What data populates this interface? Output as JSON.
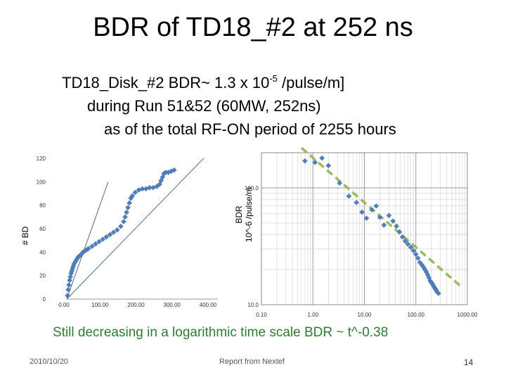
{
  "slide": {
    "title": "BDR of TD18_#2 at 252 ns",
    "subtitle": {
      "line1_pre": "TD18_Disk_#2  BDR~ 1.3 x 10",
      "line1_sup": "-5",
      "line1_post": " /pulse/m]",
      "line2": "during Run 51&52  (60MW, 252ns)",
      "line3": "as of the total RF-ON period of 2255 hours"
    },
    "caption": "Still decreasing in a logarithmic time scale BDR ~ t^-0.38",
    "footer": {
      "date": "2010/10/20",
      "source": "Report from Nextef",
      "page": "14"
    }
  },
  "chart_data": [
    {
      "type": "scatter",
      "ylabel": "# BD",
      "xlim": [
        0,
        400
      ],
      "ylim": [
        0,
        120
      ],
      "x_ticks": [
        "0.00",
        "100.00",
        "200.00",
        "300.00",
        "400.00"
      ],
      "y_ticks": [
        "0",
        "20",
        "40",
        "60",
        "80",
        "100",
        "120"
      ],
      "grid": false,
      "marker_color": "#4f81bd",
      "points": [
        [
          2,
          3
        ],
        [
          4,
          8
        ],
        [
          6,
          12
        ],
        [
          8,
          16
        ],
        [
          10,
          19
        ],
        [
          12,
          22
        ],
        [
          14,
          24
        ],
        [
          16,
          26
        ],
        [
          18,
          28
        ],
        [
          20,
          30
        ],
        [
          24,
          32
        ],
        [
          28,
          34
        ],
        [
          32,
          36
        ],
        [
          36,
          37
        ],
        [
          40,
          38
        ],
        [
          45,
          40
        ],
        [
          50,
          41
        ],
        [
          55,
          42
        ],
        [
          60,
          43
        ],
        [
          70,
          45
        ],
        [
          80,
          47
        ],
        [
          90,
          49
        ],
        [
          100,
          51
        ],
        [
          110,
          53
        ],
        [
          120,
          55
        ],
        [
          130,
          57
        ],
        [
          140,
          59
        ],
        [
          150,
          62
        ],
        [
          158,
          66
        ],
        [
          162,
          70
        ],
        [
          166,
          74
        ],
        [
          170,
          78
        ],
        [
          174,
          82
        ],
        [
          178,
          86
        ],
        [
          182,
          88
        ],
        [
          190,
          91
        ],
        [
          200,
          93
        ],
        [
          210,
          94
        ],
        [
          220,
          94
        ],
        [
          230,
          95
        ],
        [
          240,
          95
        ],
        [
          250,
          96
        ],
        [
          258,
          98
        ],
        [
          262,
          101
        ],
        [
          266,
          104
        ],
        [
          270,
          107
        ],
        [
          275,
          108
        ],
        [
          282,
          108
        ],
        [
          290,
          109
        ],
        [
          298,
          110
        ]
      ],
      "lines": [
        {
          "from": [
            0,
            0
          ],
          "to": [
            115,
            100
          ]
        },
        {
          "from": [
            0,
            0
          ],
          "to": [
            380,
            120
          ]
        }
      ]
    },
    {
      "type": "scatter",
      "ylabel": "BDR\n10^-6 /pulse/m",
      "x_scale": "log",
      "y_scale": "log",
      "xlim": [
        0.1,
        1000
      ],
      "ylim": [
        10,
        200
      ],
      "x_ticks": [
        "0.10",
        "1.00",
        "10.00",
        "100.00",
        "1000.00"
      ],
      "y_ticks": [
        "10.0",
        "100.0"
      ],
      "grid": true,
      "marker_color": "#4f81bd",
      "trend_color": "#9bbb59",
      "points": [
        [
          0.7,
          170
        ],
        [
          1.1,
          165
        ],
        [
          1.5,
          180
        ],
        [
          2.0,
          155
        ],
        [
          3.3,
          110
        ],
        [
          5,
          85
        ],
        [
          7,
          75
        ],
        [
          9,
          62
        ],
        [
          11,
          55
        ],
        [
          14,
          65
        ],
        [
          17,
          70
        ],
        [
          20,
          56
        ],
        [
          24,
          48
        ],
        [
          30,
          58
        ],
        [
          36,
          52
        ],
        [
          42,
          47
        ],
        [
          48,
          42
        ],
        [
          55,
          38
        ],
        [
          62,
          35
        ],
        [
          70,
          33
        ],
        [
          80,
          31
        ],
        [
          90,
          29
        ],
        [
          100,
          27
        ],
        [
          110,
          25
        ],
        [
          120,
          23
        ],
        [
          130,
          22
        ],
        [
          140,
          21
        ],
        [
          150,
          20
        ],
        [
          160,
          19
        ],
        [
          170,
          18
        ],
        [
          180,
          17
        ],
        [
          190,
          16
        ],
        [
          200,
          15.5
        ],
        [
          210,
          15
        ],
        [
          220,
          14.5
        ],
        [
          230,
          14
        ],
        [
          240,
          13.6
        ],
        [
          250,
          13.2
        ],
        [
          260,
          12.8
        ],
        [
          275,
          12.5
        ]
      ],
      "trend": {
        "from": [
          0.6,
          220
        ],
        "to": [
          800,
          14
        ]
      }
    }
  ]
}
